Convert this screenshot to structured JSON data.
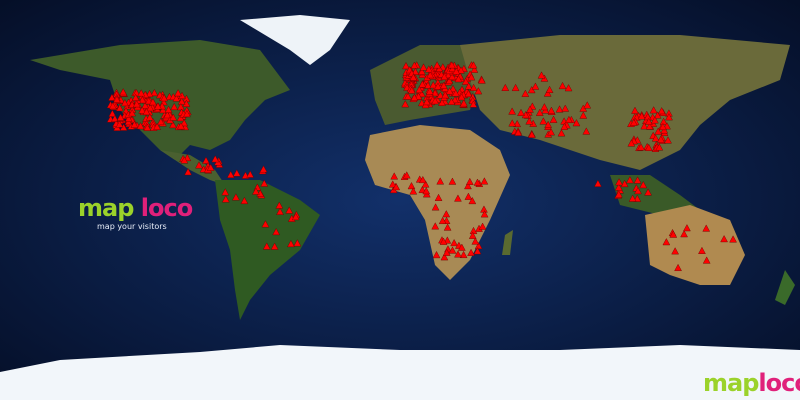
{
  "logo": {
    "part1": "map",
    "part2": "loco",
    "tagline": "map your visitors"
  },
  "corner_logo": {
    "part1": "map",
    "part2": "loco"
  },
  "colors": {
    "ocean": "#0a1a3a",
    "marker": "#ff0000",
    "logo_green": "#9bd22a",
    "logo_pink": "#e0207a",
    "ice": "#f2f6fa"
  },
  "marker_icon": "red-triangle-icon"
}
